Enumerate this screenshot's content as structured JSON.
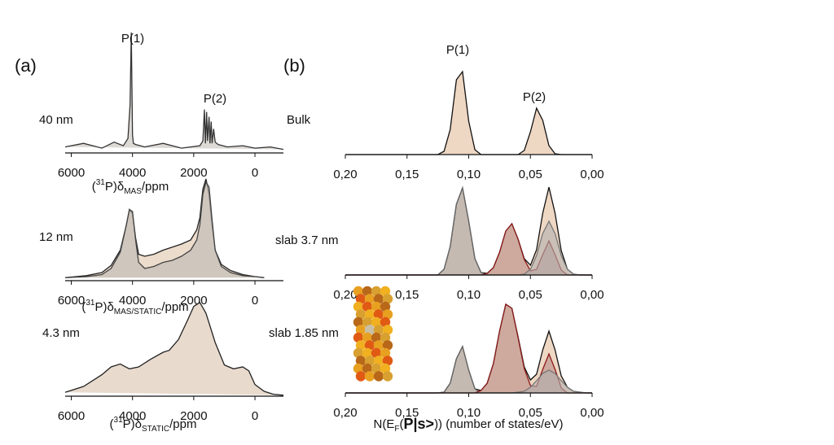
{
  "panel_labels": [
    "(a)",
    "(b)"
  ],
  "chart_data": [
    {
      "type": "area",
      "label": "40 nm",
      "annotations": [
        "P(1)",
        "P(2)"
      ],
      "xlabel_parts": [
        {
          "text": "("
        },
        {
          "text": "31",
          "style": "sup"
        },
        {
          "text": "P)δ"
        },
        {
          "text": "MAS",
          "style": "sub"
        },
        {
          "text": "/ppm"
        }
      ],
      "xlim": [
        6200,
        -930
      ],
      "xticks": [
        6000,
        4000,
        2000,
        0
      ],
      "ylim": [
        0,
        100
      ],
      "x": [
        6200,
        5600,
        5000,
        4600,
        4300,
        4150,
        4080,
        4040,
        4020,
        4000,
        3970,
        3900,
        3600,
        3000,
        2400,
        1800,
        1700,
        1650,
        1620,
        1580,
        1550,
        1500,
        1470,
        1430,
        1400,
        1350,
        1300,
        1200,
        900,
        400,
        0,
        -500,
        -930
      ],
      "series": [
        {
          "color": "#333333",
          "fill": "#d9d6d2",
          "values": [
            5,
            8,
            4,
            9,
            6,
            12,
            40,
            100,
            60,
            15,
            8,
            7,
            5,
            8,
            4,
            6,
            10,
            36,
            8,
            34,
            10,
            30,
            8,
            26,
            8,
            20,
            9,
            7,
            5,
            6,
            4,
            5,
            3
          ]
        }
      ]
    },
    {
      "type": "area",
      "label": "12 nm",
      "xlabel_parts": [
        {
          "text": "("
        },
        {
          "text": "31",
          "style": "sup"
        },
        {
          "text": "P)δ"
        },
        {
          "text": "MAS/STATIC",
          "style": "sub"
        },
        {
          "text": "/ppm"
        }
      ],
      "xlim": [
        6200,
        -930
      ],
      "xticks": [
        6000,
        4000,
        2000,
        0
      ],
      "ylim": [
        0,
        100
      ],
      "x": [
        6200,
        5500,
        5000,
        4700,
        4400,
        4200,
        4100,
        4000,
        3900,
        3800,
        3600,
        3300,
        3000,
        2700,
        2400,
        2100,
        1900,
        1800,
        1700,
        1600,
        1500,
        1400,
        1300,
        1100,
        800,
        400,
        0,
        -300
      ],
      "series": [
        {
          "color": "#222222",
          "fill": "#ead8c6",
          "values": [
            3,
            5,
            8,
            15,
            30,
            55,
            70,
            66,
            42,
            26,
            24,
            26,
            30,
            33,
            36,
            40,
            50,
            62,
            90,
            100,
            85,
            55,
            30,
            16,
            10,
            6,
            4,
            3
          ]
        },
        {
          "color": "#444444",
          "fill": "#bdb8b3",
          "values": [
            3,
            4,
            6,
            12,
            28,
            55,
            70,
            68,
            40,
            18,
            12,
            14,
            18,
            20,
            24,
            30,
            40,
            55,
            85,
            97,
            92,
            60,
            30,
            14,
            8,
            5,
            4,
            3
          ]
        }
      ]
    },
    {
      "type": "area",
      "label": "4.3 nm",
      "xlabel_parts": [
        {
          "text": "("
        },
        {
          "text": "31",
          "style": "sup"
        },
        {
          "text": "P)δ"
        },
        {
          "text": "STATIC",
          "style": "sub"
        },
        {
          "text": "/ppm"
        }
      ],
      "xlim": [
        6200,
        -930
      ],
      "xticks": [
        6000,
        4000,
        2000,
        0
      ],
      "ylim": [
        0,
        100
      ],
      "x": [
        6200,
        5600,
        5000,
        4700,
        4400,
        4100,
        3800,
        3400,
        3000,
        2800,
        2500,
        2200,
        2000,
        1800,
        1600,
        1300,
        1000,
        700,
        400,
        200,
        0,
        -300,
        -600,
        -930
      ],
      "series": [
        {
          "color": "#222222",
          "fill": "#e6d6c8",
          "values": [
            4,
            10,
            22,
            30,
            33,
            28,
            30,
            38,
            45,
            47,
            58,
            78,
            92,
            96,
            85,
            55,
            32,
            28,
            30,
            26,
            12,
            5,
            2,
            1
          ]
        }
      ]
    },
    {
      "type": "area",
      "label": "Bulk",
      "annotations": [
        "P(1)",
        "P(2)"
      ],
      "xlim": [
        0.2,
        0
      ],
      "ylim": [
        0,
        120
      ],
      "xticks": [
        {
          "value": 0.2,
          "label": "0,20"
        },
        {
          "value": 0.15,
          "label": "0,15"
        },
        {
          "value": 0.1,
          "label": "0,10"
        },
        {
          "value": 0.05,
          "label": "0,05"
        },
        {
          "value": 0,
          "label": "0,00"
        }
      ],
      "x": [
        0.2,
        0.195,
        0.19,
        0.185,
        0.18,
        0.175,
        0.17,
        0.165,
        0.16,
        0.155,
        0.15,
        0.145,
        0.14,
        0.135,
        0.13,
        0.125,
        0.12,
        0.115,
        0.11,
        0.105,
        0.1,
        0.095,
        0.09,
        0.085,
        0.08,
        0.075,
        0.07,
        0.065,
        0.06,
        0.055,
        0.05,
        0.045,
        0.04,
        0.035,
        0.03,
        0.025,
        0.02,
        0.015,
        0.01,
        0.005,
        0
      ],
      "series": [
        {
          "color": "#111111",
          "fill": "#ecd3bd",
          "values": [
            0,
            0,
            0,
            0,
            0,
            0,
            0,
            0,
            0,
            0,
            0,
            0,
            0,
            0,
            0,
            0,
            4,
            31,
            92,
            102,
            41,
            6,
            0,
            0,
            0,
            0,
            0,
            0,
            0,
            5,
            28,
            57,
            42,
            11,
            1,
            0,
            0,
            0,
            0,
            0,
            0
          ]
        }
      ]
    },
    {
      "type": "area",
      "label": "slab 3.7 nm",
      "xlim": [
        0.2,
        0
      ],
      "ylim": [
        0,
        120
      ],
      "xticks": [
        {
          "value": 0.2,
          "label": "0,20"
        },
        {
          "value": 0.15,
          "label": "0,15"
        },
        {
          "value": 0.1,
          "label": "0,10"
        },
        {
          "value": 0.05,
          "label": "0,05"
        },
        {
          "value": 0,
          "label": "0,00"
        }
      ],
      "x": [
        0.2,
        0.195,
        0.19,
        0.185,
        0.18,
        0.175,
        0.17,
        0.165,
        0.16,
        0.155,
        0.15,
        0.145,
        0.14,
        0.135,
        0.13,
        0.125,
        0.12,
        0.115,
        0.11,
        0.105,
        0.1,
        0.095,
        0.09,
        0.085,
        0.08,
        0.075,
        0.07,
        0.065,
        0.06,
        0.055,
        0.05,
        0.045,
        0.04,
        0.035,
        0.03,
        0.025,
        0.02,
        0.015,
        0.01,
        0.005,
        0
      ],
      "series": [
        {
          "color": "#111111",
          "fill": "#ecd3bd",
          "values": [
            0,
            0,
            0,
            0,
            0,
            0,
            0,
            0,
            0,
            0,
            0,
            0,
            0,
            0,
            0,
            0,
            7,
            35,
            87,
            107,
            66,
            20,
            3,
            2,
            9,
            28,
            54,
            63,
            44,
            20,
            12,
            31,
            76,
            108,
            76,
            30,
            7,
            1,
            0,
            0,
            0
          ]
        },
        {
          "color": "#666666",
          "fill": "#a9a7a5",
          "values": [
            0,
            0,
            0,
            0,
            0,
            0,
            0,
            0,
            0,
            0,
            0,
            0,
            0,
            0,
            0,
            0,
            7,
            35,
            87,
            107,
            66,
            20,
            3,
            0,
            0,
            0,
            0,
            0,
            0,
            0,
            0,
            0,
            0,
            0,
            0,
            0,
            0,
            0,
            0,
            0,
            0
          ]
        },
        {
          "color": "#8b1a1a",
          "fill": "#b98a86",
          "values": [
            0,
            0,
            0,
            0,
            0,
            0,
            0,
            0,
            0,
            0,
            0,
            0,
            0,
            0,
            0,
            0,
            0,
            0,
            0,
            0,
            0,
            0,
            0,
            2,
            9,
            28,
            54,
            63,
            44,
            19,
            5,
            7,
            25,
            42,
            25,
            6,
            0,
            0,
            0,
            0,
            0
          ]
        },
        {
          "color": "#777777",
          "fill": "#b3b1af",
          "values": [
            0,
            0,
            0,
            0,
            0,
            0,
            0,
            0,
            0,
            0,
            0,
            0,
            0,
            0,
            0,
            0,
            0,
            0,
            0,
            0,
            0,
            0,
            0,
            0,
            0,
            0,
            0,
            0,
            0,
            1,
            7,
            24,
            51,
            66,
            51,
            24,
            7,
            1,
            0,
            0,
            0
          ]
        }
      ]
    },
    {
      "type": "area",
      "label": "slab 1.85 nm",
      "xlabel_parts": [
        {
          "text": "N(E"
        },
        {
          "text": "F",
          "style": "sub"
        },
        {
          "text": "("
        },
        {
          "text": "P|s>",
          "style": "big"
        },
        {
          "text": ")) (number of states/eV)"
        }
      ],
      "xlim": [
        0.2,
        0
      ],
      "ylim": [
        0,
        120
      ],
      "xticks": [
        {
          "value": 0.2,
          "label": "0,20"
        },
        {
          "value": 0.15,
          "label": "0,15"
        },
        {
          "value": 0.1,
          "label": "0,10"
        },
        {
          "value": 0.05,
          "label": "0,05"
        },
        {
          "value": 0,
          "label": "0,00"
        }
      ],
      "x": [
        0.2,
        0.195,
        0.19,
        0.185,
        0.18,
        0.175,
        0.17,
        0.165,
        0.16,
        0.155,
        0.15,
        0.145,
        0.14,
        0.135,
        0.13,
        0.125,
        0.12,
        0.115,
        0.11,
        0.105,
        0.1,
        0.095,
        0.09,
        0.085,
        0.08,
        0.075,
        0.07,
        0.065,
        0.06,
        0.055,
        0.05,
        0.045,
        0.04,
        0.035,
        0.03,
        0.025,
        0.02,
        0.015,
        0.01,
        0.005,
        0
      ],
      "series": [
        {
          "color": "#111111",
          "fill": "#ecd3bd",
          "values": [
            0,
            0,
            0,
            0,
            0,
            0,
            0,
            0,
            0,
            0,
            0,
            0,
            0,
            0,
            0,
            0,
            1,
            12,
            42,
            57,
            28,
            5,
            3,
            12,
            36,
            76,
            109,
            104,
            69,
            32,
            16,
            23,
            53,
            76,
            53,
            21,
            7,
            2,
            1,
            0,
            0
          ]
        },
        {
          "color": "#666666",
          "fill": "#a9a7a5",
          "values": [
            0,
            0,
            0,
            0,
            0,
            0,
            0,
            0,
            0,
            0,
            0,
            0,
            0,
            0,
            0,
            0,
            1,
            12,
            42,
            57,
            28,
            5,
            0,
            0,
            0,
            0,
            0,
            0,
            0,
            0,
            0,
            0,
            0,
            0,
            0,
            0,
            0,
            0,
            0,
            0,
            0
          ]
        },
        {
          "color": "#8b1a1a",
          "fill": "#b98a86",
          "values": [
            0,
            0,
            0,
            0,
            0,
            0,
            0,
            0,
            0,
            0,
            0,
            0,
            0,
            0,
            0,
            0,
            0,
            0,
            0,
            0,
            0,
            0,
            3,
            12,
            36,
            76,
            109,
            104,
            68,
            30,
            9,
            8,
            29,
            48,
            29,
            6,
            0,
            0,
            0,
            0,
            0
          ]
        },
        {
          "color": "#777777",
          "fill": "#b3b1af",
          "values": [
            0,
            0,
            0,
            0,
            0,
            0,
            0,
            0,
            0,
            0,
            0,
            0,
            0,
            0,
            0,
            0,
            0,
            0,
            0,
            0,
            0,
            0,
            0,
            0,
            0,
            0,
            0,
            0,
            1,
            2,
            7,
            15,
            24,
            28,
            24,
            15,
            7,
            2,
            1,
            0,
            0
          ]
        }
      ]
    }
  ]
}
